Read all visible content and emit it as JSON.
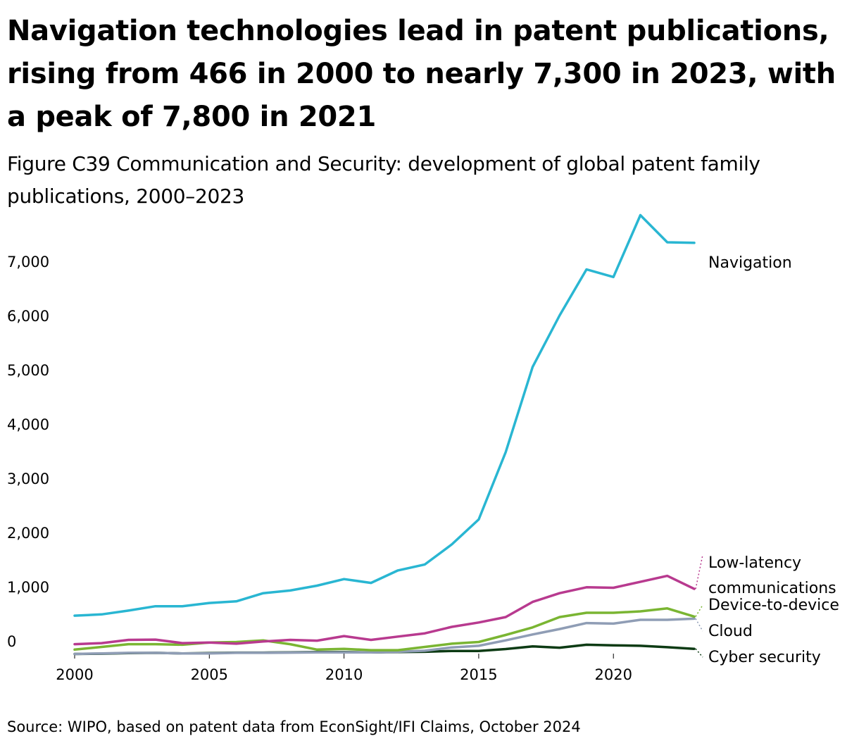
{
  "title": "Navigation technologies lead in patent publications, rising from 466 in 2000 to nearly 7,300 in 2023, with a peak of 7,800 in 2021",
  "subtitle": "Figure C39 Communication and Security: development of global patent family publications, 2000–2023",
  "source": "Source: WIPO, based on patent data from EconSight/IFI Claims, October 2024",
  "chart_data": {
    "type": "line",
    "title": "Figure C39 Communication and Security: development of global patent family publications, 2000–2023",
    "xlabel": "",
    "ylabel": "",
    "xlim": [
      2000,
      2023
    ],
    "ylim": [
      -250,
      7800
    ],
    "x": [
      2000,
      2001,
      2002,
      2003,
      2004,
      2005,
      2006,
      2007,
      2008,
      2009,
      2010,
      2011,
      2012,
      2013,
      2014,
      2015,
      2016,
      2017,
      2018,
      2019,
      2020,
      2021,
      2022,
      2023
    ],
    "x_ticks": [
      {
        "value": 2000,
        "label": "2000"
      },
      {
        "value": 2005,
        "label": "2005"
      },
      {
        "value": 2010,
        "label": "2010"
      },
      {
        "value": 2015,
        "label": "2015"
      },
      {
        "value": 2020,
        "label": "2020"
      }
    ],
    "y_ticks": [
      {
        "value": 0,
        "label": "0"
      },
      {
        "value": 1000,
        "label": "1,000"
      },
      {
        "value": 2000,
        "label": "2,000"
      },
      {
        "value": 3000,
        "label": "3,000"
      },
      {
        "value": 4000,
        "label": "4,000"
      },
      {
        "value": 5000,
        "label": "5,000"
      },
      {
        "value": 6000,
        "label": "6,000"
      },
      {
        "value": 7000,
        "label": "7,000"
      }
    ],
    "grid": false,
    "legend": "direct labels at line ends (right)",
    "series": [
      {
        "name": "Navigation",
        "label_lines": [
          "Navigation"
        ],
        "color": "#29b6d2",
        "values": [
          466,
          490,
          560,
          640,
          640,
          700,
          730,
          880,
          930,
          1020,
          1140,
          1070,
          1300,
          1410,
          1780,
          2240,
          3480,
          5050,
          6000,
          6850,
          6710,
          7850,
          7350,
          7340
        ]
      },
      {
        "name": "Low-latency communications",
        "label_lines": [
          "Low-latency",
          "communications"
        ],
        "color": "#b83a8f",
        "values": [
          -60,
          -40,
          20,
          25,
          -40,
          -30,
          -50,
          -10,
          20,
          5,
          90,
          20,
          80,
          140,
          260,
          340,
          440,
          720,
          880,
          990,
          980,
          1090,
          1200,
          960
        ]
      },
      {
        "name": "Device-to-device",
        "label_lines": [
          "Device-to-device"
        ],
        "color": "#7ab532",
        "values": [
          -160,
          -110,
          -60,
          -60,
          -70,
          -30,
          -20,
          10,
          -60,
          -160,
          -145,
          -170,
          -170,
          -110,
          -50,
          -20,
          110,
          250,
          440,
          520,
          520,
          545,
          600,
          450
        ]
      },
      {
        "name": "Cloud",
        "label_lines": [
          "Cloud"
        ],
        "color": "#8f9db5",
        "values": [
          -240,
          -230,
          -220,
          -220,
          -230,
          -230,
          -220,
          -220,
          -215,
          -210,
          -210,
          -210,
          -200,
          -180,
          -120,
          -90,
          10,
          120,
          220,
          330,
          320,
          390,
          390,
          410
        ]
      },
      {
        "name": "Cyber security",
        "label_lines": [
          "Cyber security"
        ],
        "color": "#0d3b14",
        "values": [
          -240,
          -235,
          -225,
          -220,
          -230,
          -225,
          -215,
          -215,
          -210,
          -205,
          -205,
          -210,
          -205,
          -200,
          -185,
          -185,
          -150,
          -100,
          -125,
          -70,
          -80,
          -90,
          -115,
          -145
        ]
      }
    ]
  }
}
